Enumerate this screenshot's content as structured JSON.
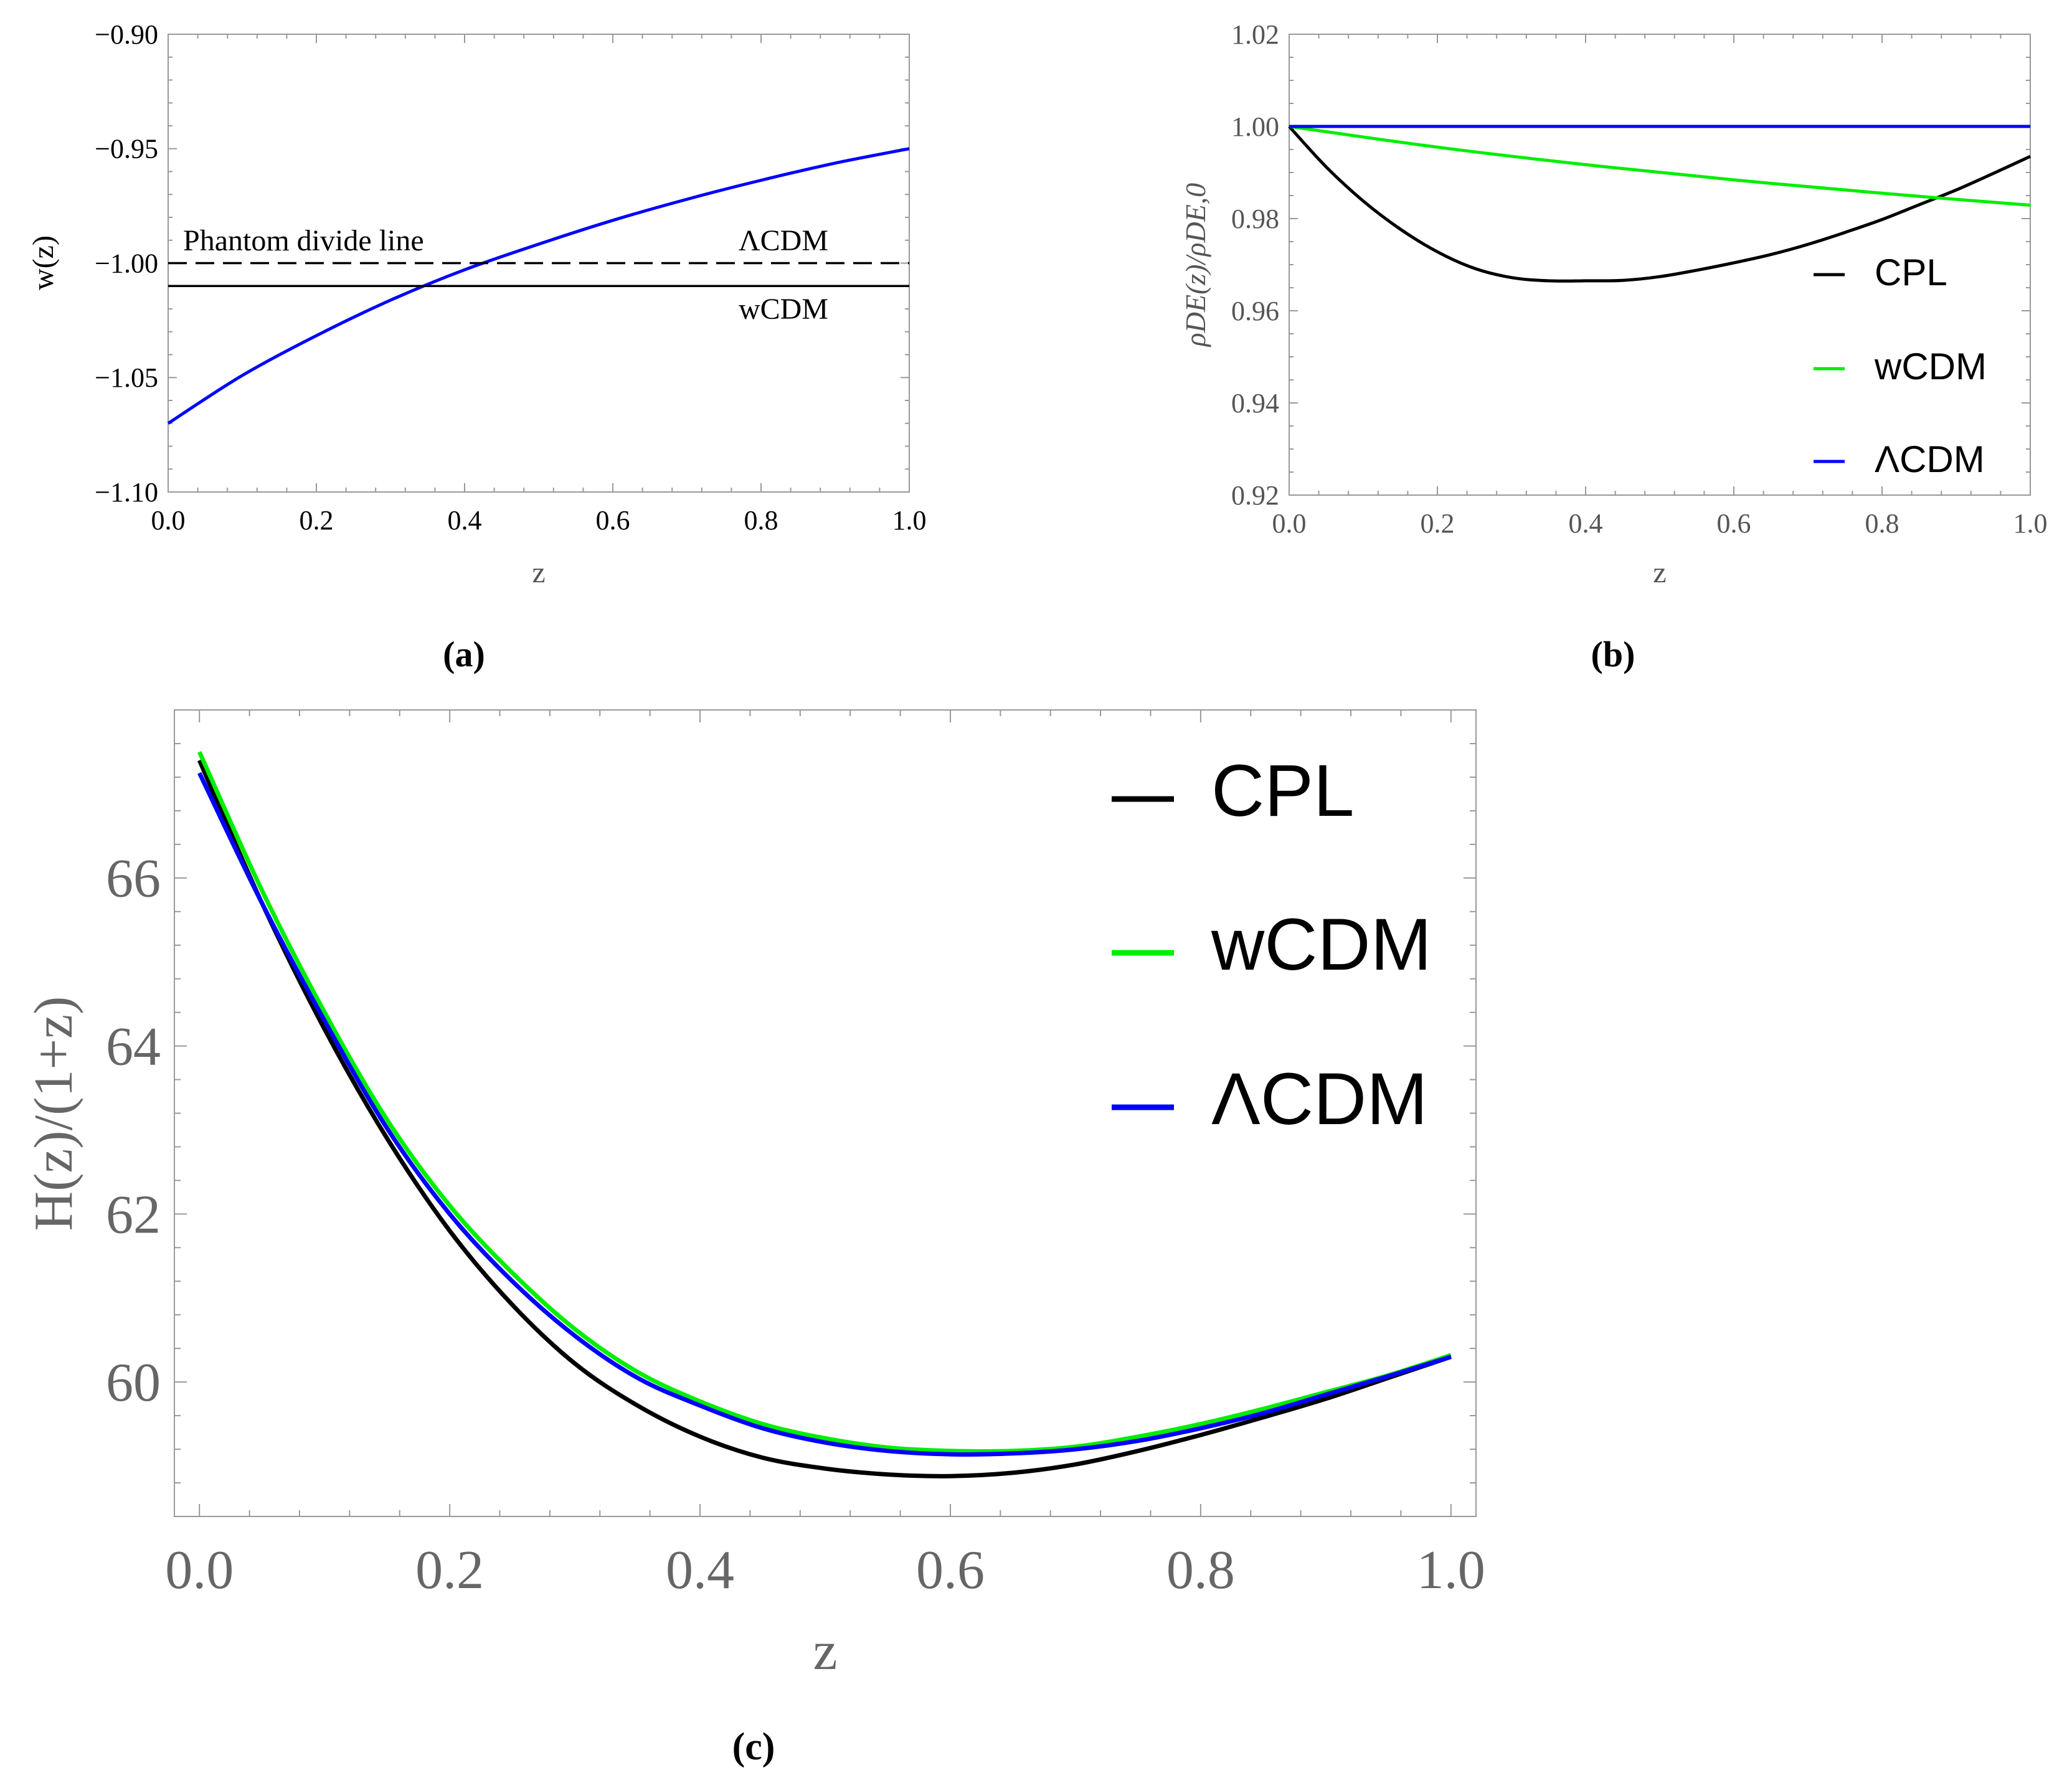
{
  "chart_data": [
    {
      "id": "a",
      "type": "line",
      "panel_label": "(a)",
      "xlabel": "z",
      "ylabel": "w(z)",
      "xlim": [
        0.0,
        1.0
      ],
      "ylim": [
        -1.1,
        -0.9
      ],
      "xticks": [
        "0.0",
        "0.2",
        "0.4",
        "0.6",
        "0.8",
        "1.0"
      ],
      "yticks": [
        "−1.10",
        "−1.05",
        "−1.00",
        "−0.95",
        "−0.90"
      ],
      "ytick_values": [
        -1.1,
        -1.05,
        -1.0,
        -0.95,
        -0.9
      ],
      "series": [
        {
          "name": "CPL",
          "color": "#0000ff",
          "style": "solid",
          "x": [
            0,
            0.1,
            0.2,
            0.3,
            0.4,
            0.5,
            0.6,
            0.7,
            0.8,
            0.9,
            1.0
          ],
          "values": [
            -1.07,
            -1.0491,
            -1.0317,
            -1.0162,
            -1.0029,
            -0.9917,
            -0.9813,
            -0.9721,
            -0.9638,
            -0.9563,
            -0.95
          ]
        },
        {
          "name": "ΛCDM",
          "color": "#000000",
          "style": "dashed",
          "x": [
            0,
            1
          ],
          "values": [
            -1.0,
            -1.0
          ]
        },
        {
          "name": "wCDM",
          "color": "#000000",
          "style": "solid",
          "x": [
            0,
            1
          ],
          "values": [
            -1.01,
            -1.01
          ]
        }
      ],
      "annotations": [
        {
          "text": "Phantom divide line",
          "x": 0.02,
          "y": -0.995,
          "anchor": "start"
        },
        {
          "text": "ΛCDM",
          "x": 0.89,
          "y": -0.995,
          "anchor": "end"
        },
        {
          "text": "wCDM",
          "x": 0.89,
          "y": -1.025,
          "anchor": "end"
        }
      ]
    },
    {
      "id": "b",
      "type": "line",
      "panel_label": "(b)",
      "xlabel": "z",
      "ylabel": "ρDE(z)/ρDE,0",
      "xlim": [
        0.0,
        1.0
      ],
      "ylim": [
        0.92,
        1.02
      ],
      "xticks": [
        "0.0",
        "0.2",
        "0.4",
        "0.6",
        "0.8",
        "1.0"
      ],
      "yticks": [
        "0.92",
        "0.94",
        "0.96",
        "0.98",
        "1.00",
        "1.02"
      ],
      "ytick_values": [
        0.92,
        0.94,
        0.96,
        0.98,
        1.0,
        1.02
      ],
      "series": [
        {
          "name": "CPL",
          "color": "#000000",
          "style": "solid",
          "x": [
            0,
            0.05,
            0.1,
            0.15,
            0.2,
            0.25,
            0.3,
            0.35,
            0.4,
            0.45,
            0.5,
            0.55,
            0.6,
            0.65,
            0.7,
            0.75,
            0.8,
            0.85,
            0.9,
            0.95,
            1.0
          ],
          "values": [
            1.0,
            0.9912,
            0.9838,
            0.9777,
            0.9728,
            0.9692,
            0.9672,
            0.9665,
            0.9665,
            0.9666,
            0.9674,
            0.9688,
            0.9704,
            0.9722,
            0.9744,
            0.977,
            0.9798,
            0.983,
            0.9862,
            0.9898,
            0.9935
          ]
        },
        {
          "name": "wCDM",
          "color": "#00ee00",
          "style": "solid",
          "x": [
            0,
            0.2,
            0.4,
            0.6,
            0.8,
            1.0
          ],
          "values": [
            1.0,
            0.9955,
            0.9917,
            0.9884,
            0.9855,
            0.9829
          ]
        },
        {
          "name": "ΛCDM",
          "color": "#0000ff",
          "style": "solid",
          "x": [
            0,
            1.0
          ],
          "values": [
            1.0,
            1.0
          ]
        }
      ],
      "legend": [
        "CPL",
        "wCDM",
        "ΛCDM"
      ]
    },
    {
      "id": "c",
      "type": "line",
      "panel_label": "(c)",
      "xlabel": "z",
      "ylabel": "H(z)/(1+z)",
      "xlim": [
        -0.02,
        1.02
      ],
      "ylim": [
        58.4,
        68.0
      ],
      "xticks": [
        "0.0",
        "0.2",
        "0.4",
        "0.6",
        "0.8",
        "1.0"
      ],
      "yticks": [
        "60",
        "62",
        "64",
        "66"
      ],
      "ytick_values": [
        60,
        62,
        64,
        66
      ],
      "series": [
        {
          "name": "CPL",
          "color": "#000000",
          "style": "solid",
          "x": [
            0,
            0.05,
            0.1,
            0.15,
            0.2,
            0.25,
            0.3,
            0.35,
            0.4,
            0.45,
            0.5,
            0.55,
            0.6,
            0.65,
            0.7,
            0.75,
            0.8,
            0.85,
            0.9,
            0.95,
            1.0
          ],
          "values": [
            67.4,
            65.7,
            64.2,
            62.9,
            61.8,
            60.92,
            60.22,
            59.72,
            59.35,
            59.1,
            58.97,
            58.9,
            58.88,
            58.92,
            59.02,
            59.18,
            59.37,
            59.58,
            59.8,
            60.05,
            60.3
          ]
        },
        {
          "name": "wCDM",
          "color": "#00ee00",
          "style": "solid",
          "x": [
            0,
            0.05,
            0.1,
            0.15,
            0.2,
            0.25,
            0.3,
            0.35,
            0.4,
            0.45,
            0.5,
            0.55,
            0.6,
            0.65,
            0.7,
            0.75,
            0.8,
            0.85,
            0.9,
            0.95,
            1.0
          ],
          "values": [
            67.5,
            65.85,
            64.4,
            63.12,
            62.1,
            61.3,
            60.63,
            60.12,
            59.77,
            59.5,
            59.33,
            59.22,
            59.18,
            59.18,
            59.23,
            59.35,
            59.5,
            59.68,
            59.88,
            60.08,
            60.32
          ]
        },
        {
          "name": "ΛCDM",
          "color": "#0000ff",
          "style": "solid",
          "x": [
            0,
            0.05,
            0.1,
            0.15,
            0.2,
            0.25,
            0.3,
            0.35,
            0.4,
            0.45,
            0.5,
            0.55,
            0.6,
            0.65,
            0.7,
            0.75,
            0.8,
            0.85,
            0.9,
            0.95,
            1.0
          ],
          "values": [
            67.25,
            65.7,
            64.3,
            63.02,
            62.0,
            61.2,
            60.55,
            60.05,
            59.72,
            59.45,
            59.28,
            59.18,
            59.14,
            59.15,
            59.2,
            59.3,
            59.45,
            59.63,
            59.85,
            60.07,
            60.3
          ]
        }
      ],
      "legend": [
        "CPL",
        "wCDM",
        "ΛCDM"
      ]
    }
  ]
}
